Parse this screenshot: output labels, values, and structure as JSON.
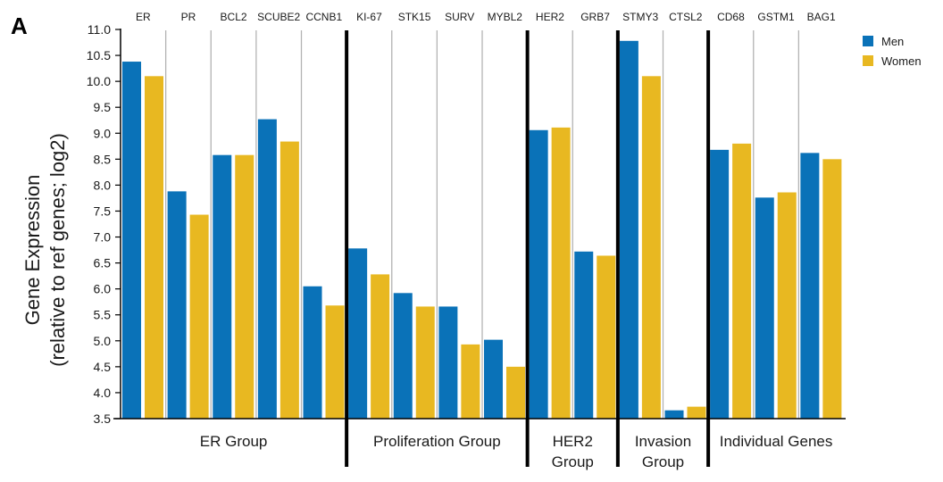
{
  "panel_label": "A",
  "chart_data": {
    "type": "bar",
    "ylabel_line1": "Gene Expression",
    "ylabel_line2": "(relative to ref genes; log2)",
    "ylim": [
      3.5,
      11.0
    ],
    "yticks": [
      "3.5",
      "4.0",
      "4.5",
      "5.0",
      "5.5",
      "6.0",
      "6.5",
      "7.0",
      "7.5",
      "8.0",
      "8.5",
      "9.0",
      "9.5",
      "10.0",
      "10.5",
      "11.0"
    ],
    "categories": [
      "ER",
      "PR",
      "BCL2",
      "SCUBE2",
      "CCNB1",
      "KI-67",
      "STK15",
      "SURV",
      "MYBL2",
      "HER2",
      "GRB7",
      "STMY3",
      "CTSL2",
      "CD68",
      "GSTM1",
      "BAG1"
    ],
    "series": [
      {
        "name": "Men",
        "color": "#0a72b8",
        "values": [
          10.38,
          7.88,
          8.58,
          9.27,
          6.05,
          6.78,
          5.92,
          5.66,
          5.02,
          9.06,
          6.72,
          10.78,
          3.66,
          8.68,
          7.76,
          8.62
        ]
      },
      {
        "name": "Women",
        "color": "#e8b821",
        "values": [
          10.1,
          7.43,
          8.58,
          8.84,
          5.68,
          6.28,
          5.66,
          4.93,
          4.5,
          9.11,
          6.64,
          10.1,
          3.73,
          8.8,
          7.86,
          8.5
        ]
      }
    ],
    "groups": [
      {
        "label_lines": [
          "ER Group"
        ],
        "start": 0,
        "end": 4
      },
      {
        "label_lines": [
          "Proliferation Group"
        ],
        "start": 5,
        "end": 8
      },
      {
        "label_lines": [
          "HER2",
          "Group"
        ],
        "start": 9,
        "end": 10
      },
      {
        "label_lines": [
          "Invasion",
          "Group"
        ],
        "start": 11,
        "end": 12
      },
      {
        "label_lines": [
          "Individual Genes"
        ],
        "start": 13,
        "end": 15
      }
    ],
    "legend": "top-right",
    "grid": false
  }
}
